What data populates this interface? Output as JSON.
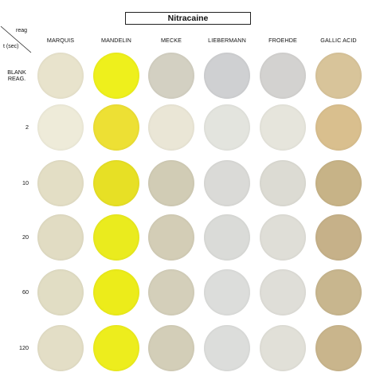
{
  "title": "Nitracaine",
  "corner": {
    "reag_label": "reag",
    "time_label": "t (sec)"
  },
  "columns": [
    "MARQUIS",
    "MANDELIN",
    "MECKE",
    "LIEBERMANN",
    "FROEHDE",
    "GALLIC ACID"
  ],
  "rows": [
    {
      "label_lines": [
        "BLANK",
        "REAG."
      ]
    },
    {
      "label_lines": [
        "2"
      ]
    },
    {
      "label_lines": [
        "10"
      ]
    },
    {
      "label_lines": [
        "20"
      ]
    },
    {
      "label_lines": [
        "60"
      ]
    },
    {
      "label_lines": [
        "120"
      ]
    }
  ],
  "well_colors": [
    [
      "#e8e3cc",
      "#eef01c",
      "#d3d0c2",
      "#cfd0d2",
      "#d3d2d0",
      "#d8c49a"
    ],
    [
      "#eeebd9",
      "#ede034",
      "#eae6d6",
      "#e3e4de",
      "#e6e5dc",
      "#d9bf8e"
    ],
    [
      "#e3dec5",
      "#e7e025",
      "#d1ccb5",
      "#dadad7",
      "#dcdbd3",
      "#c7b387"
    ],
    [
      "#e1dcc3",
      "#eaeb1e",
      "#d3cdb6",
      "#dadbd8",
      "#dfded7",
      "#c6b189"
    ],
    [
      "#e1ddc4",
      "#ecec1a",
      "#d4cfba",
      "#dcdddb",
      "#dfded8",
      "#c8b68e"
    ],
    [
      "#e3dec6",
      "#eded1d",
      "#d3ceb8",
      "#dcdddb",
      "#e1e0d8",
      "#c9b58c"
    ]
  ]
}
